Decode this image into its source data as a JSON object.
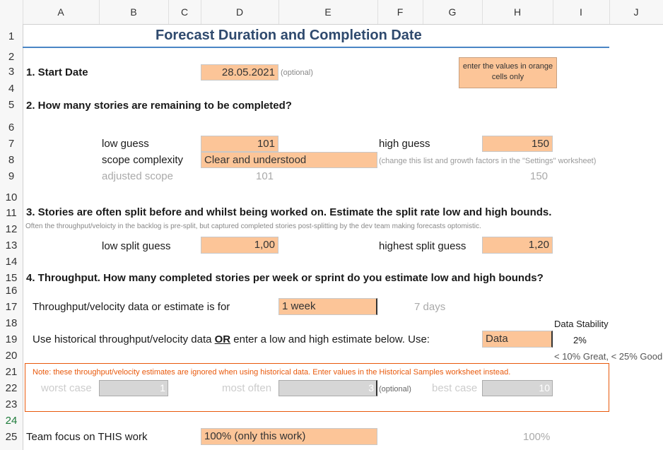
{
  "columns": [
    "A",
    "B",
    "C",
    "D",
    "E",
    "F",
    "G",
    "H",
    "I",
    "J"
  ],
  "rows": [
    "1",
    "2",
    "3",
    "4",
    "5",
    "6",
    "7",
    "8",
    "9",
    "10",
    "11",
    "12",
    "13",
    "14",
    "15",
    "16",
    "17",
    "18",
    "19",
    "20",
    "21",
    "22",
    "23",
    "24",
    "25"
  ],
  "title": "Forecast Duration and Completion Date",
  "note_box": "enter the values in orange cells only",
  "s1": {
    "label": "1. Start Date",
    "value": "28.05.2021",
    "optional": "(optional)"
  },
  "s2": {
    "label": "2. How many stories are remaining to be completed?",
    "low_label": "low guess",
    "low_value": "101",
    "high_label": "high guess",
    "high_value": "150",
    "complexity_label": "scope complexity",
    "complexity_value": "Clear and understood",
    "complexity_hint": "(change this list and growth factors in the \"Settings\" worksheet)",
    "adjusted_label": "adjusted scope",
    "adjusted_low": "101",
    "adjusted_high": "150"
  },
  "s3": {
    "label": "3. Stories are often split before and whilst being worked on. Estimate the split rate low and high bounds.",
    "note": "Often the throughput/veloicty in the backlog is pre-split, but captured completed stories post-splitting by the dev team making forecasts optomistic.",
    "low_label": "low split guess",
    "low_value": "1,00",
    "high_label": "highest split guess",
    "high_value": "1,20"
  },
  "s4": {
    "label": "4. Throughput. How many completed stories per week or sprint do you estimate low and high bounds?",
    "period_label": "Throughput/velocity data or estimate is for",
    "period_value": "1 week",
    "period_days": "7 days",
    "use_label_pre": "Use historical throughput/velocity data ",
    "use_label_or": "OR",
    "use_label_post": " enter a low and high estimate below. Use:",
    "use_value": "Data",
    "stability_label": "Data Stability",
    "stability_value": "2%",
    "stability_hint": "< 10% Great, < 25% Good",
    "note": "Note: these throughput/velocity estimates are ignored when using historical data. Enter values in the Historical Samples worksheet instead.",
    "worst_label": "worst case",
    "worst_value": "1",
    "most_label": "most often",
    "most_value": "3",
    "most_optional": "(optional)",
    "best_label": "best case",
    "best_value": "10"
  },
  "focus": {
    "label": "Team focus on THIS work",
    "value": "100% (only this work)",
    "result": "100%"
  },
  "colors": {
    "orange": "#fcc598",
    "title_blue": "#2f4a6e",
    "note_orange": "#e8590c",
    "rule_blue": "#4a86c5",
    "selected_row": "#1e7b3a"
  }
}
